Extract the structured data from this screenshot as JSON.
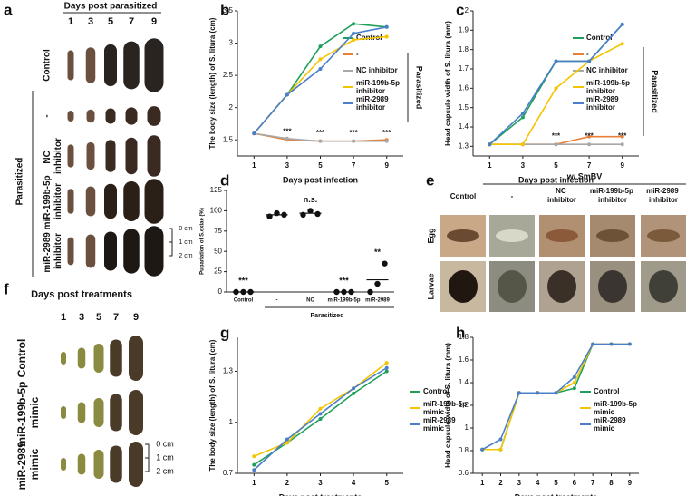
{
  "panel_labels": [
    "a",
    "b",
    "c",
    "d",
    "e",
    "f",
    "g",
    "h"
  ],
  "panel_a": {
    "title": "Days post parasitized",
    "days": [
      "1",
      "3",
      "5",
      "7",
      "9"
    ],
    "rows": [
      "Control",
      "-",
      "NC inhibitor",
      "miR-199b-5p inhibitor",
      "miR-2989 inhibitor"
    ],
    "group": "Parasitized",
    "scale": [
      "0 cm",
      "1 cm",
      "2 cm"
    ]
  },
  "panel_e": {
    "title": "w/ SmBV",
    "columns": [
      "Control",
      "-",
      "NC inhibitor",
      "miR-199b-5p inhibitor",
      "miR-2989 inhibitor"
    ],
    "rows": [
      "Egg",
      "Larvae"
    ]
  },
  "panel_f": {
    "title": "Days post treatments",
    "days": [
      "1",
      "3",
      "5",
      "7",
      "9"
    ],
    "rows": [
      "Control",
      "miR-199b-5p mimic",
      "miR-2989 mimic"
    ],
    "scale": [
      "0 cm",
      "1 cm",
      "2 cm"
    ]
  },
  "chart_data": [
    {
      "type": "line",
      "x_label": "Days post infection",
      "y_label": "The body size (length) of S. litura (cm)",
      "x": [
        1,
        3,
        5,
        7,
        9
      ],
      "xlim": [
        0,
        10
      ],
      "xticks": [
        1,
        3,
        5,
        7,
        9
      ],
      "ylim": [
        1.25,
        3.5
      ],
      "yticks": [
        1.5,
        2,
        2.5,
        3,
        3.5
      ],
      "side_label": "Parasitized",
      "annotations": [
        null,
        "***",
        "***",
        "***",
        "***"
      ],
      "series": [
        {
          "name": "Control",
          "color": "#1fa05a",
          "values": [
            1.6,
            2.2,
            2.95,
            3.3,
            3.25
          ]
        },
        {
          "name": "-",
          "color": "#e8803a",
          "values": [
            1.6,
            1.5,
            1.48,
            1.48,
            1.5
          ]
        },
        {
          "name": "NC inhibitor",
          "color": "#a8a8a8",
          "values": [
            1.6,
            1.52,
            1.48,
            1.48,
            1.48
          ]
        },
        {
          "name": "miR-199b-5p inhibitor",
          "color": "#f5c400",
          "values": [
            1.6,
            2.2,
            2.75,
            3.05,
            3.1
          ]
        },
        {
          "name": "miR-2989 inhibitor",
          "color": "#4a7ec9",
          "values": [
            1.6,
            2.2,
            2.6,
            3.15,
            3.25
          ]
        }
      ]
    },
    {
      "type": "line",
      "x_label": "Days post infection",
      "y_label": "Head capsule width of S. litura (mm)",
      "x": [
        1,
        3,
        5,
        7,
        9
      ],
      "xlim": [
        0,
        10
      ],
      "xticks": [
        1,
        3,
        5,
        7,
        9
      ],
      "ylim": [
        1.25,
        2.0
      ],
      "yticks": [
        1.3,
        1.4,
        1.5,
        1.6,
        1.7,
        1.8,
        1.9,
        2
      ],
      "side_label": "Parasitized",
      "annotations": [
        null,
        null,
        "***",
        "***",
        "***"
      ],
      "series": [
        {
          "name": "Control",
          "color": "#1fa05a",
          "values": [
            1.31,
            1.45,
            1.74,
            1.74,
            1.93
          ]
        },
        {
          "name": "-",
          "color": "#e8803a",
          "values": [
            1.31,
            1.31,
            1.31,
            1.35,
            1.35
          ]
        },
        {
          "name": "NC inhibitor",
          "color": "#a8a8a8",
          "values": [
            1.31,
            1.31,
            1.31,
            1.31,
            1.31
          ]
        },
        {
          "name": "miR-199b-5p inhibitor",
          "color": "#f5c400",
          "values": [
            1.31,
            1.31,
            1.6,
            1.74,
            1.83
          ]
        },
        {
          "name": "miR-2989 inhibitor",
          "color": "#4a7ec9",
          "values": [
            1.31,
            1.47,
            1.74,
            1.74,
            1.93
          ]
        }
      ]
    },
    {
      "type": "dot",
      "y_label": "Pupariation of S.exiae (%)",
      "categories": [
        "Control",
        "-",
        "NC",
        "miR-199b-5p",
        "miR-2989"
      ],
      "values": [
        0,
        95,
        97,
        0,
        15
      ],
      "points": [
        [
          0,
          0,
          0
        ],
        [
          93,
          97,
          95
        ],
        [
          95,
          100,
          96
        ],
        [
          0,
          0,
          0
        ],
        [
          0,
          10,
          35
        ]
      ],
      "annotations": [
        "***",
        null,
        "n.s.",
        "***",
        "**"
      ],
      "group_label": "Parasitized",
      "ylim": [
        0,
        125
      ],
      "yticks": [
        0,
        25,
        50,
        75,
        100,
        125
      ],
      "color": "#111111"
    },
    {
      "type": "line",
      "x_label": "Days post treatments",
      "y_label": "The body size (length) of S. litura (cm)",
      "x": [
        1,
        2,
        3,
        4,
        5
      ],
      "xlim": [
        0.5,
        5.5
      ],
      "xticks": [
        1,
        2,
        3,
        4,
        5
      ],
      "ylim": [
        0.7,
        1.5
      ],
      "yticks": [
        0.7,
        1,
        1.3
      ],
      "series": [
        {
          "name": "Control",
          "color": "#1fa05a",
          "values": [
            0.75,
            0.88,
            1.02,
            1.17,
            1.3
          ]
        },
        {
          "name": "miR-199b-5p mimic",
          "color": "#f5c400",
          "values": [
            0.8,
            0.88,
            1.08,
            1.2,
            1.35
          ]
        },
        {
          "name": "miR-2989 mimic",
          "color": "#4a7ec9",
          "values": [
            0.72,
            0.9,
            1.05,
            1.2,
            1.32
          ]
        }
      ]
    },
    {
      "type": "line",
      "x_label": "Days post treatments",
      "y_label": "Head capsule width of S. litura (mm)",
      "x": [
        1,
        2,
        3,
        4,
        5,
        6,
        7,
        8,
        9
      ],
      "xlim": [
        0.5,
        9.5
      ],
      "xticks": [
        1,
        2,
        3,
        4,
        5,
        6,
        7,
        8,
        9
      ],
      "ylim": [
        0.6,
        1.8
      ],
      "yticks": [
        0.6,
        0.8,
        1,
        1.2,
        1.4,
        1.6,
        1.8
      ],
      "series": [
        {
          "name": "Control",
          "color": "#1fa05a",
          "values": [
            0.81,
            0.81,
            1.31,
            1.31,
            1.31,
            1.35,
            1.74,
            1.74,
            1.74
          ]
        },
        {
          "name": "miR-199b-5p mimic",
          "color": "#f5c400",
          "values": [
            0.81,
            0.81,
            1.31,
            1.31,
            1.31,
            1.4,
            1.74,
            1.74,
            1.74
          ]
        },
        {
          "name": "miR-2989 mimic",
          "color": "#4a7ec9",
          "values": [
            0.81,
            0.9,
            1.31,
            1.31,
            1.31,
            1.45,
            1.74,
            1.74,
            1.74
          ]
        }
      ]
    }
  ]
}
